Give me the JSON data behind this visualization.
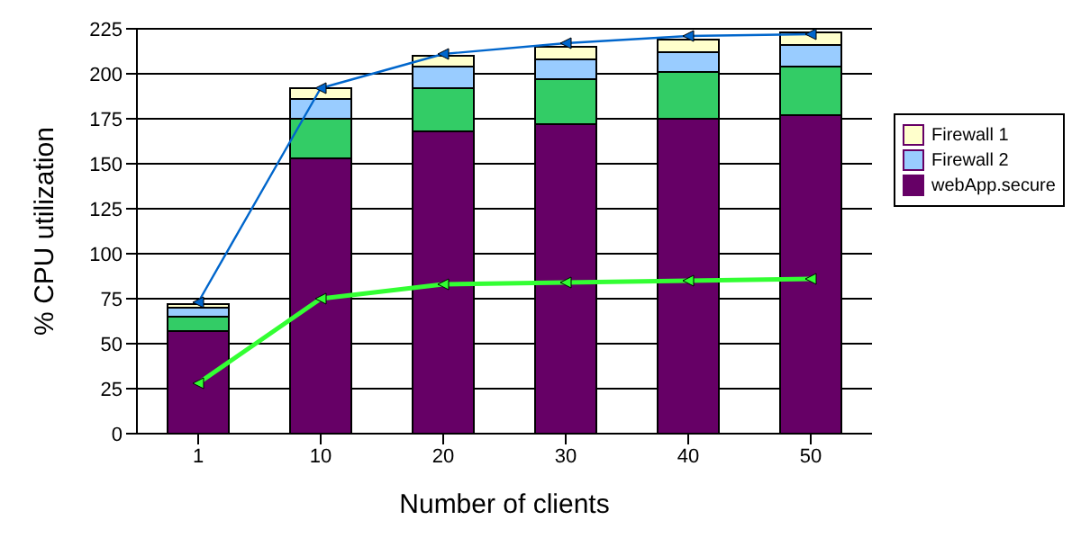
{
  "chart_data": {
    "type": "bar",
    "stacked": true,
    "categories": [
      "1",
      "10",
      "20",
      "30",
      "40",
      "50"
    ],
    "xlabel": "Number of clients",
    "ylabel": "% CPU utilization",
    "ylim": [
      0,
      225
    ],
    "yticks": [
      0,
      25,
      50,
      75,
      100,
      125,
      150,
      175,
      200,
      225
    ],
    "grid": "y",
    "legend": "right",
    "marker": "triangle",
    "series": [
      {
        "name": "webApp.secure",
        "color": "#660066",
        "values": [
          57,
          153,
          168,
          172,
          175,
          177
        ]
      },
      {
        "color": "#33cc66",
        "values": [
          8,
          22,
          24,
          25,
          26,
          27
        ]
      },
      {
        "name": "Firewall 2",
        "color": "#99ccff",
        "values": [
          5,
          11,
          12,
          11,
          11,
          12
        ]
      },
      {
        "name": "Firewall 1",
        "color": "#ffffcc",
        "values": [
          2,
          6,
          6,
          7,
          7,
          7
        ]
      },
      {
        "type": "line",
        "color": "#33ff33",
        "values": [
          28,
          75,
          83,
          84,
          85,
          86
        ]
      },
      {
        "type": "line",
        "color": "#0066cc",
        "values": [
          73,
          192,
          211,
          217,
          221,
          222
        ]
      }
    ]
  }
}
